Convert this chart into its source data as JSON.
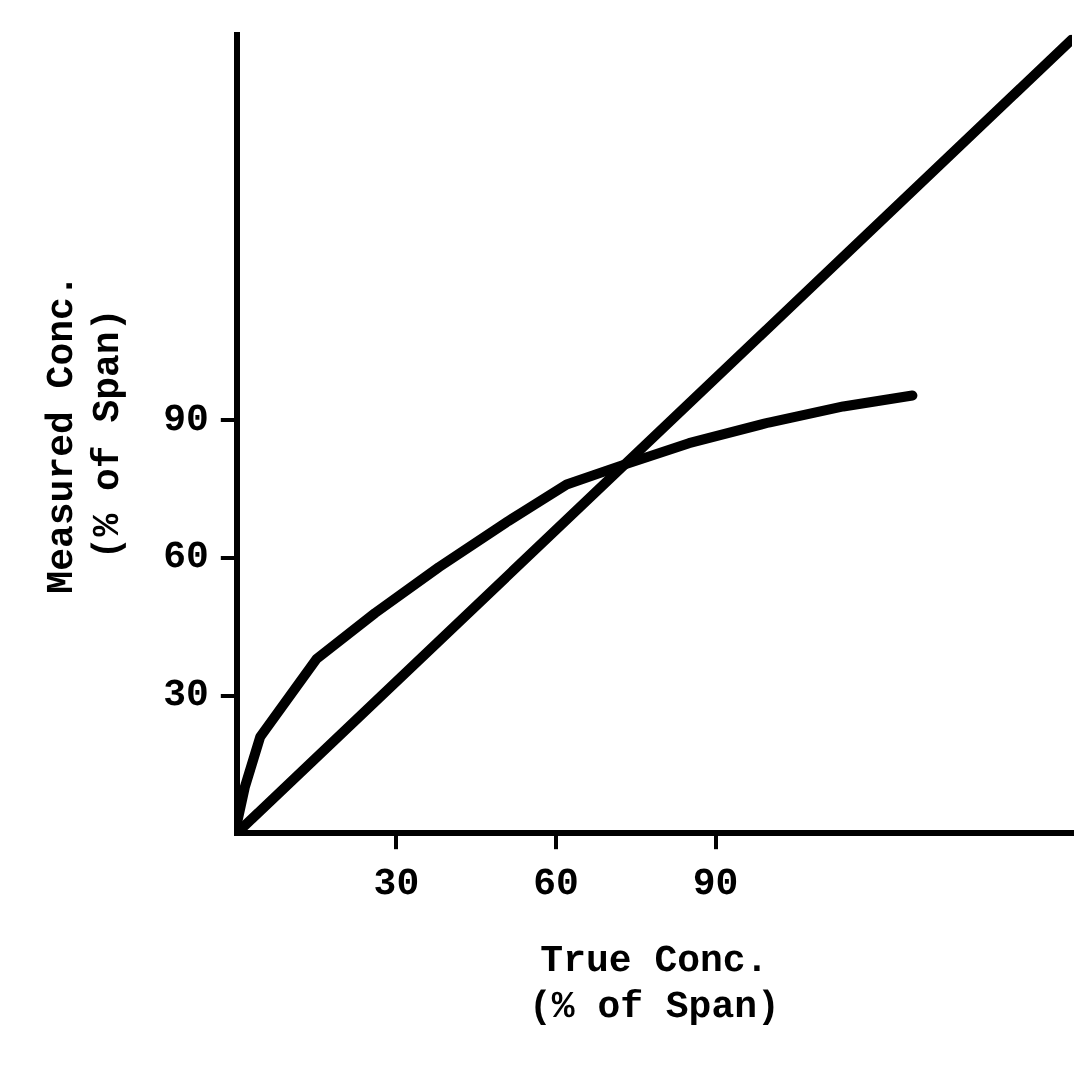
{
  "chart_data": {
    "type": "line",
    "xlabel": "True Conc.\n(% of Span)",
    "ylabel": "Measured Conc.\n(% of Span)",
    "xlim": [
      0,
      157
    ],
    "ylim": [
      0,
      174
    ],
    "xticks": [
      30,
      60,
      90
    ],
    "yticks": [
      30,
      60,
      90
    ],
    "grid": false,
    "legend": false,
    "marker": "none",
    "line_style": "solid",
    "series": [
      {
        "color": "#000000",
        "x": [
          0,
          157
        ],
        "values": [
          0,
          173
        ]
      },
      {
        "color": "#000000",
        "x": [
          0,
          1.5,
          4.4,
          15,
          26,
          38,
          51,
          62,
          72,
          85,
          100,
          114,
          127
        ],
        "values": [
          2,
          10,
          21,
          38,
          48,
          58,
          68,
          76,
          80,
          85,
          89.5,
          93,
          95.4
        ]
      }
    ]
  }
}
